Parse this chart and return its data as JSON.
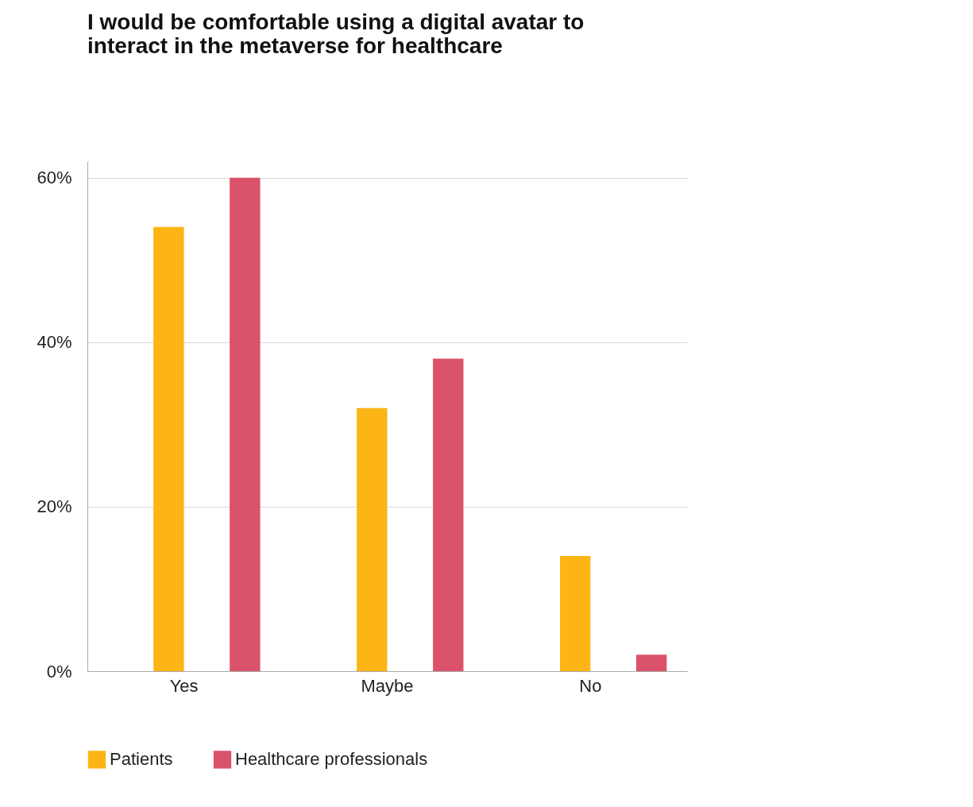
{
  "chart_data": {
    "type": "bar",
    "title": "I would be comfortable using a digital avatar to interact in the metaverse for healthcare",
    "categories": [
      "Yes",
      "Maybe",
      "No"
    ],
    "series": [
      {
        "name": "Patients",
        "color": "#fdb515",
        "values": [
          54,
          32,
          14
        ]
      },
      {
        "name": "Healthcare professionals",
        "color": "#db536a",
        "values": [
          60,
          38,
          2
        ]
      }
    ],
    "ylim": [
      0,
      62
    ],
    "yticks": [
      {
        "value": 0,
        "label": "0%"
      },
      {
        "value": 20,
        "label": "20%"
      },
      {
        "value": 40,
        "label": "40%"
      },
      {
        "value": 60,
        "label": "60%"
      }
    ],
    "grid": "y",
    "legend": "bottom"
  }
}
